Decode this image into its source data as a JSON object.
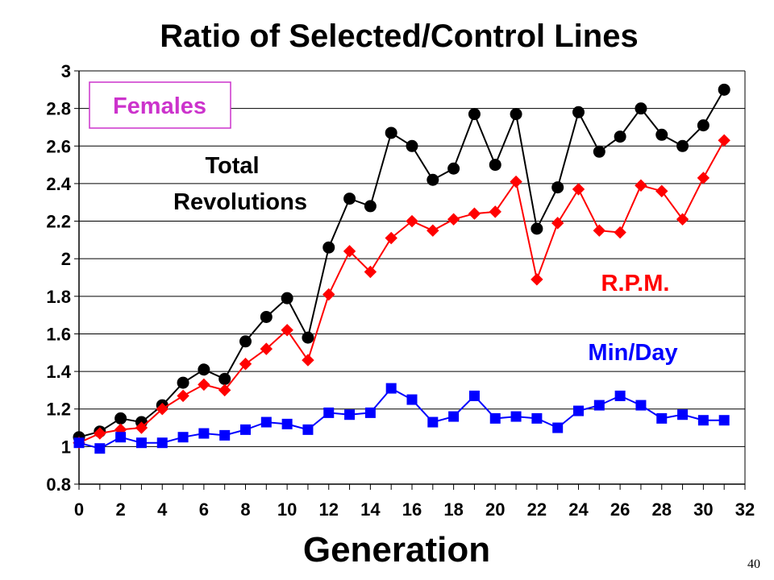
{
  "page_number": "40",
  "chart_data": {
    "type": "line",
    "title": "Ratio of Selected/Control Lines",
    "xlabel": "Generation",
    "ylabel": "",
    "xlim": [
      0,
      32
    ],
    "ylim": [
      0.8,
      3
    ],
    "x_ticks": [
      "0",
      "2",
      "4",
      "6",
      "8",
      "10",
      "12",
      "14",
      "16",
      "18",
      "20",
      "22",
      "24",
      "26",
      "28",
      "30",
      "32"
    ],
    "y_ticks": [
      "0.8",
      "1",
      "1.2",
      "1.4",
      "1.6",
      "1.8",
      "2",
      "2.2",
      "2.4",
      "2.6",
      "2.8",
      "3"
    ],
    "grid": "horizontal",
    "legend": "none",
    "box_label": "Females",
    "x": [
      0,
      1,
      2,
      3,
      4,
      5,
      6,
      7,
      8,
      9,
      10,
      11,
      12,
      13,
      14,
      15,
      16,
      17,
      18,
      19,
      20,
      21,
      22,
      23,
      24,
      25,
      26,
      27,
      28,
      29,
      30,
      31
    ],
    "series": [
      {
        "name": "Total Revolutions",
        "label_line1": "Total",
        "label_line2": "Revolutions",
        "color": "#000000",
        "marker": "circle",
        "values": [
          1.05,
          1.08,
          1.15,
          1.13,
          1.22,
          1.34,
          1.41,
          1.36,
          1.56,
          1.69,
          1.79,
          1.58,
          2.06,
          2.32,
          2.28,
          2.67,
          2.6,
          2.42,
          2.48,
          2.77,
          2.5,
          2.77,
          2.16,
          2.38,
          2.78,
          2.57,
          2.65,
          2.8,
          2.66,
          2.6,
          2.71,
          2.9
        ]
      },
      {
        "name": "R.P.M.",
        "color": "#ff0000",
        "marker": "diamond",
        "values": [
          1.02,
          1.07,
          1.09,
          1.1,
          1.2,
          1.27,
          1.33,
          1.3,
          1.44,
          1.52,
          1.62,
          1.46,
          1.81,
          2.04,
          1.93,
          2.11,
          2.2,
          2.15,
          2.21,
          2.24,
          2.25,
          2.41,
          1.89,
          2.19,
          2.37,
          2.15,
          2.14,
          2.39,
          2.36,
          2.21,
          2.43,
          2.63
        ]
      },
      {
        "name": "Min/Day",
        "color": "#0000ff",
        "marker": "square",
        "values": [
          1.02,
          0.99,
          1.05,
          1.02,
          1.02,
          1.05,
          1.07,
          1.06,
          1.09,
          1.13,
          1.12,
          1.09,
          1.18,
          1.17,
          1.18,
          1.31,
          1.25,
          1.13,
          1.16,
          1.27,
          1.15,
          1.16,
          1.15,
          1.1,
          1.19,
          1.22,
          1.27,
          1.22,
          1.15,
          1.17,
          1.14,
          1.14
        ]
      }
    ]
  }
}
